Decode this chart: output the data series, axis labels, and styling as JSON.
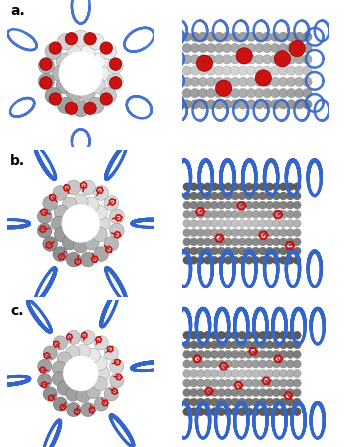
{
  "figure_width": 3.47,
  "figure_height": 4.47,
  "dpi": 100,
  "background_color": "#ffffff",
  "labels": [
    "a.",
    "b.",
    "c."
  ],
  "label_fontsize": 10,
  "label_fontweight": "bold",
  "helix_color": "#3366cc",
  "helix_lw_cg": 1.8,
  "helix_lw_at": 2.8,
  "cnt_sphere_light": "#d0d0d0",
  "cnt_sphere_mid": "#aaaaaa",
  "cnt_sphere_dark": "#888888",
  "phe_cg_color": "#cc1111",
  "phe_at_color": "#cc1111",
  "white": "#ffffff",
  "black": "#000000",
  "cnt_dark_bg": "#1a1a1a"
}
